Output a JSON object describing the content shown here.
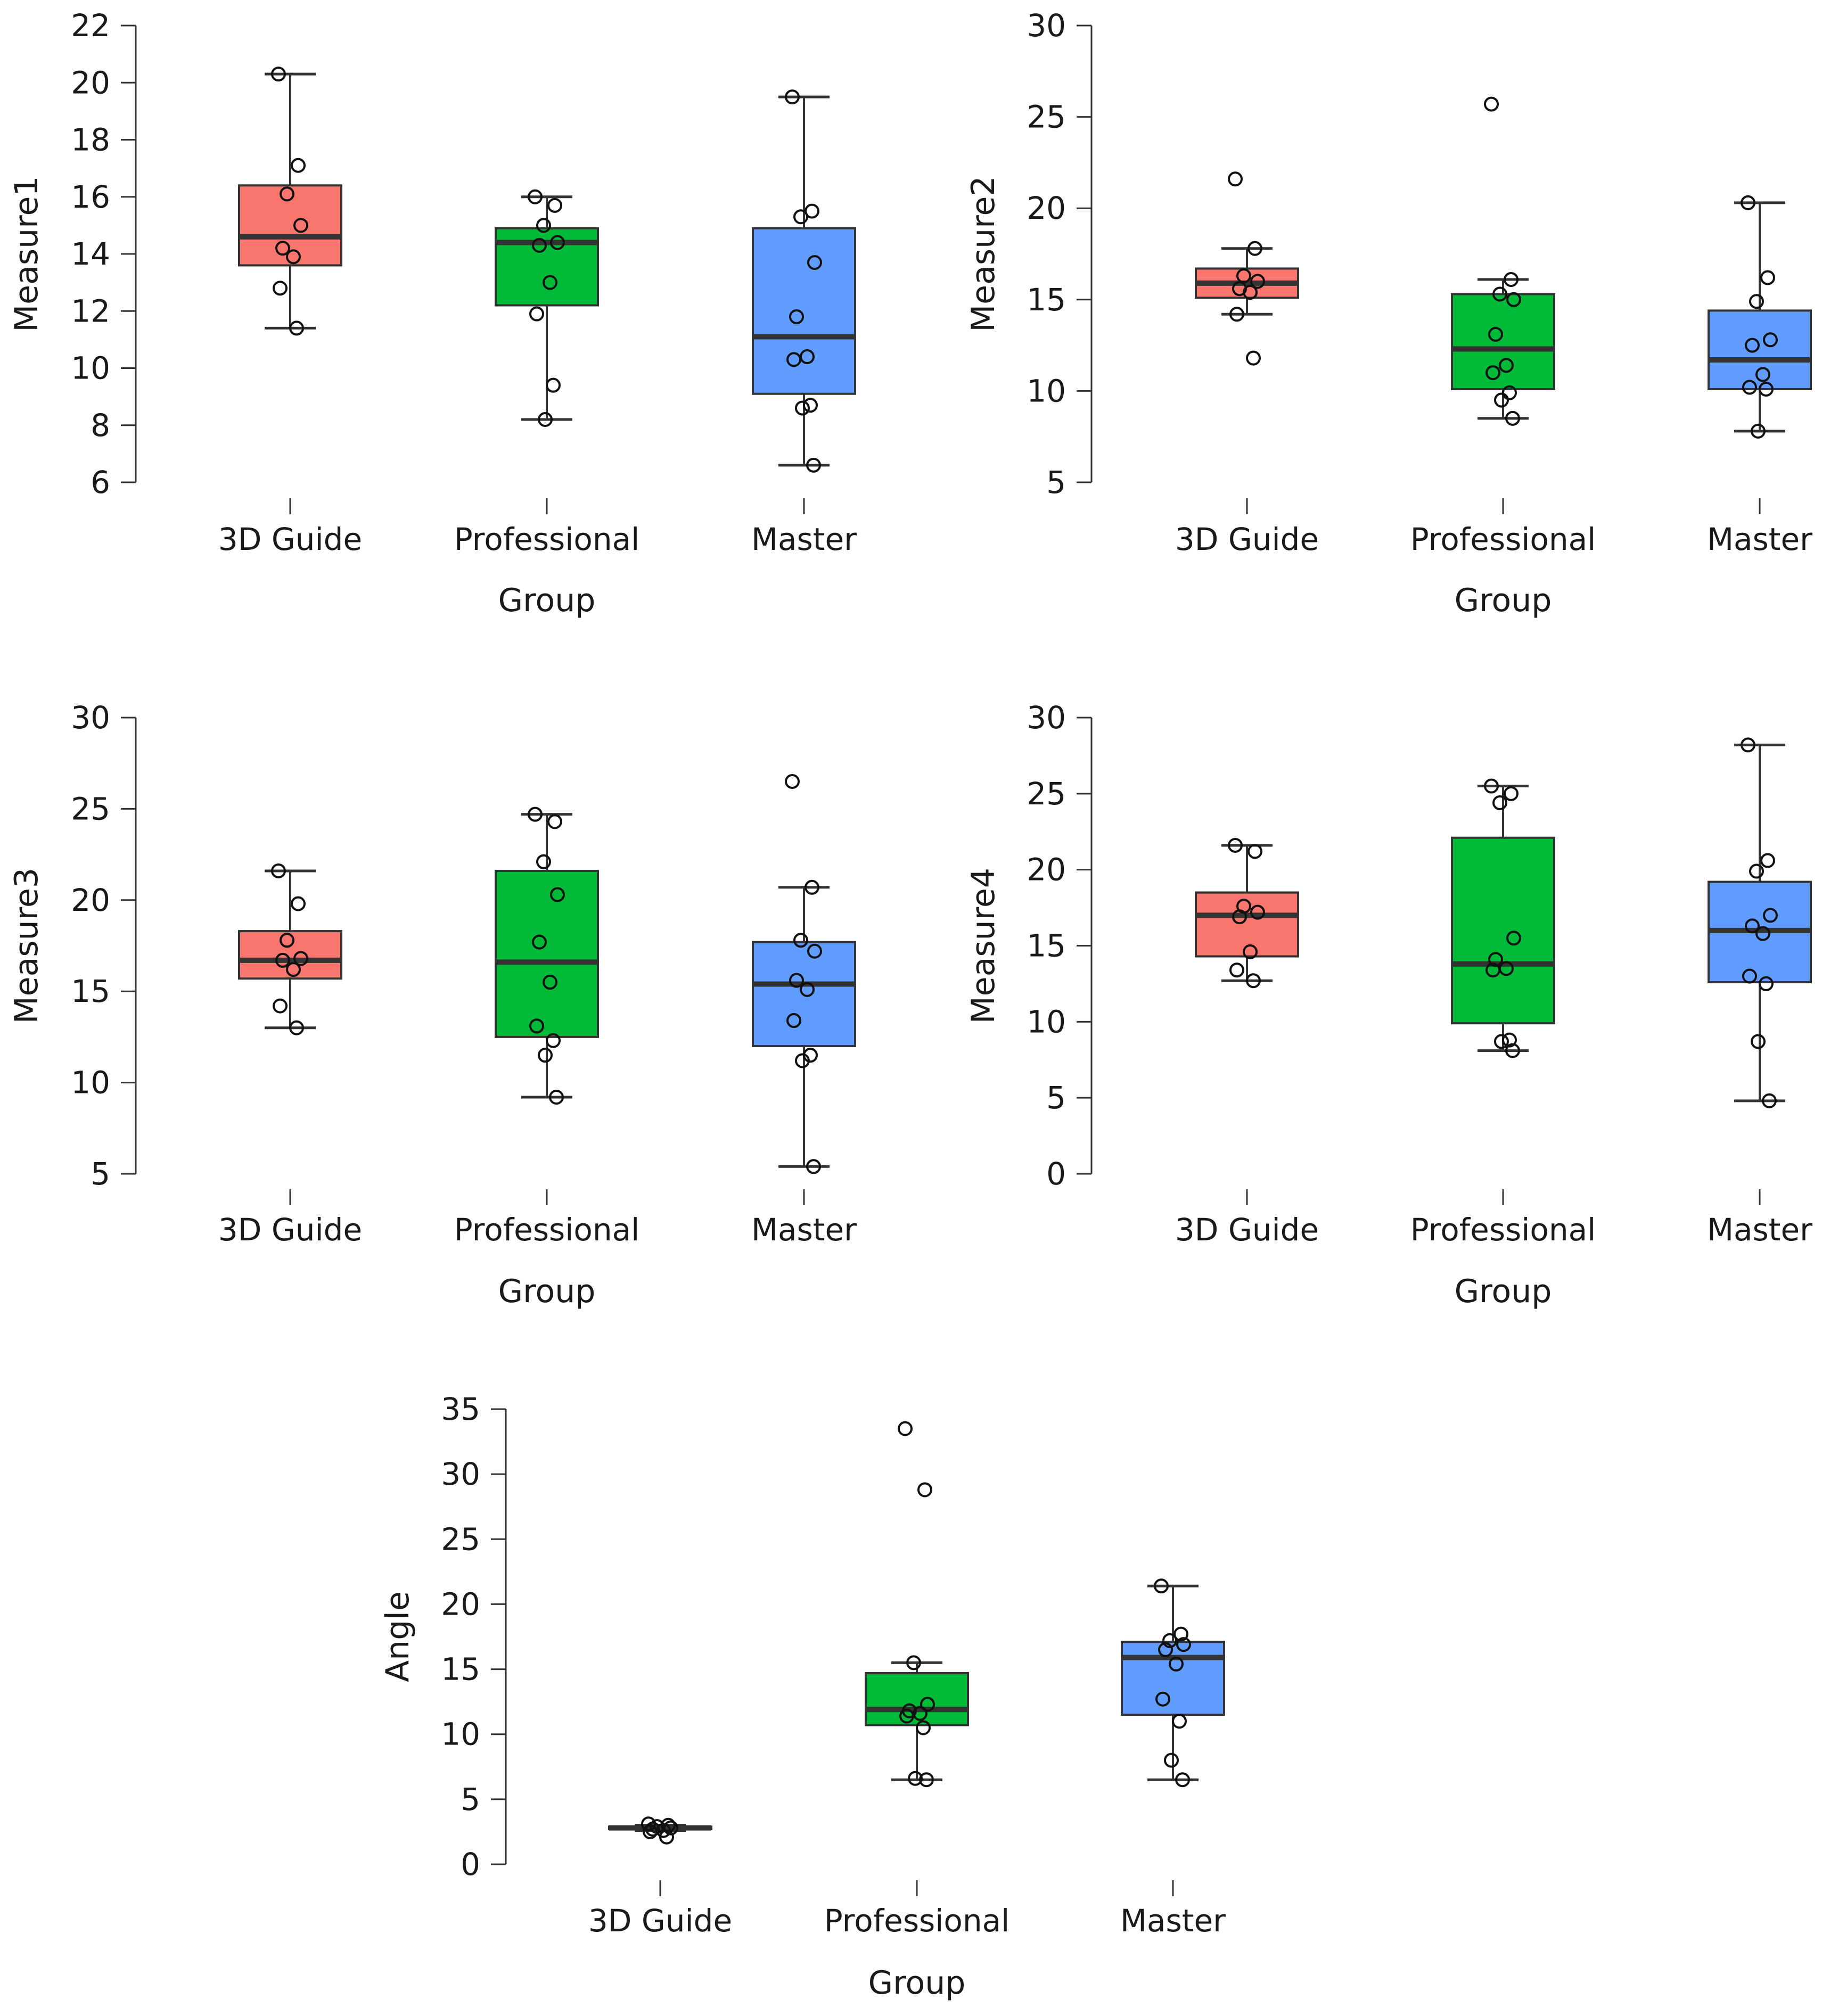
{
  "colors": {
    "3D Guide": "#F8766D",
    "Professional": "#00BA38",
    "Master": "#619CFF",
    "median": "#333333",
    "outline": "#333333"
  },
  "chart_data": [
    {
      "type": "box",
      "title": "",
      "xlabel": "Group",
      "ylabel": "Measure1",
      "categories": [
        "3D Guide",
        "Professional",
        "Master"
      ],
      "ylim": [
        6,
        22
      ],
      "yticks": [
        "6",
        "8",
        "10",
        "12",
        "14",
        "16",
        "18",
        "20",
        "22"
      ],
      "boxes": [
        {
          "group": "3D Guide",
          "min": 11.4,
          "q1": 13.6,
          "median": 14.6,
          "q3": 16.4,
          "max": 20.3,
          "points": [
            20.3,
            17.1,
            16.1,
            15.0,
            14.2,
            13.9,
            12.8,
            11.4
          ]
        },
        {
          "group": "Professional",
          "min": 8.2,
          "q1": 12.2,
          "median": 14.4,
          "q3": 14.9,
          "max": 16.0,
          "points": [
            16.0,
            15.7,
            15.0,
            14.4,
            14.3,
            13.0,
            11.9,
            9.4,
            8.2
          ]
        },
        {
          "group": "Master",
          "min": 6.6,
          "q1": 9.1,
          "median": 11.1,
          "q3": 14.9,
          "max": 19.5,
          "points": [
            19.5,
            15.5,
            15.3,
            13.7,
            11.8,
            10.4,
            10.3,
            8.7,
            8.6,
            6.6
          ]
        }
      ]
    },
    {
      "type": "box",
      "title": "",
      "xlabel": "Group",
      "ylabel": "Measure2",
      "categories": [
        "3D Guide",
        "Professional",
        "Master"
      ],
      "ylim": [
        5,
        30
      ],
      "yticks": [
        "5",
        "10",
        "15",
        "20",
        "25",
        "30"
      ],
      "boxes": [
        {
          "group": "3D Guide",
          "min": 14.2,
          "q1": 15.1,
          "median": 15.9,
          "q3": 16.7,
          "max": 17.8,
          "points": [
            21.6,
            17.8,
            16.3,
            16.0,
            15.6,
            15.4,
            14.2,
            11.8
          ]
        },
        {
          "group": "Professional",
          "min": 8.5,
          "q1": 10.1,
          "median": 12.3,
          "q3": 15.3,
          "max": 16.1,
          "points": [
            25.7,
            16.1,
            15.3,
            15.0,
            13.1,
            11.4,
            11.0,
            9.9,
            9.5,
            8.5
          ]
        },
        {
          "group": "Master",
          "min": 7.8,
          "q1": 10.1,
          "median": 11.7,
          "q3": 14.4,
          "max": 20.3,
          "points": [
            20.3,
            16.2,
            14.9,
            12.8,
            12.5,
            10.9,
            10.2,
            10.1,
            7.8
          ]
        }
      ]
    },
    {
      "type": "box",
      "title": "",
      "xlabel": "Group",
      "ylabel": "Measure3",
      "categories": [
        "3D Guide",
        "Professional",
        "Master"
      ],
      "ylim": [
        5,
        30
      ],
      "yticks": [
        "5",
        "10",
        "15",
        "20",
        "25",
        "30"
      ],
      "boxes": [
        {
          "group": "3D Guide",
          "min": 13.0,
          "q1": 15.7,
          "median": 16.7,
          "q3": 18.3,
          "max": 21.6,
          "points": [
            21.6,
            19.8,
            17.8,
            16.8,
            16.7,
            16.2,
            14.2,
            13.0
          ]
        },
        {
          "group": "Professional",
          "min": 9.2,
          "q1": 12.5,
          "median": 16.6,
          "q3": 21.6,
          "max": 24.7,
          "points": [
            24.7,
            24.3,
            22.1,
            20.3,
            17.7,
            15.5,
            13.1,
            12.3,
            11.5,
            9.2
          ]
        },
        {
          "group": "Master",
          "min": 5.4,
          "q1": 12.0,
          "median": 15.4,
          "q3": 17.7,
          "max": 20.7,
          "points": [
            26.5,
            20.7,
            17.8,
            17.2,
            15.6,
            15.1,
            13.4,
            11.5,
            11.2,
            5.4
          ]
        }
      ]
    },
    {
      "type": "box",
      "title": "",
      "xlabel": "Group",
      "ylabel": "Measure4",
      "categories": [
        "3D Guide",
        "Professional",
        "Master"
      ],
      "ylim": [
        0,
        30
      ],
      "yticks": [
        "0",
        "5",
        "10",
        "15",
        "20",
        "25",
        "30"
      ],
      "boxes": [
        {
          "group": "3D Guide",
          "min": 12.7,
          "q1": 14.3,
          "median": 17.0,
          "q3": 18.5,
          "max": 21.6,
          "points": [
            21.6,
            21.2,
            17.6,
            17.2,
            16.9,
            14.6,
            13.4,
            12.7
          ]
        },
        {
          "group": "Professional",
          "min": 8.1,
          "q1": 9.9,
          "median": 13.8,
          "q3": 22.1,
          "max": 25.5,
          "points": [
            25.5,
            25.0,
            24.4,
            15.5,
            14.1,
            13.5,
            13.4,
            8.8,
            8.7,
            8.1
          ]
        },
        {
          "group": "Master",
          "min": 4.8,
          "q1": 12.6,
          "median": 16.0,
          "q3": 19.2,
          "max": 28.2,
          "points": [
            28.2,
            20.6,
            19.9,
            17.0,
            16.3,
            15.8,
            13.0,
            12.5,
            8.7,
            4.8
          ]
        }
      ]
    },
    {
      "type": "box",
      "title": "",
      "xlabel": "Group",
      "ylabel": "Angle",
      "categories": [
        "3D Guide",
        "Professional",
        "Master"
      ],
      "ylim": [
        0,
        35
      ],
      "yticks": [
        "0",
        "5",
        "10",
        "15",
        "20",
        "25",
        "30",
        "35"
      ],
      "boxes": [
        {
          "group": "3D Guide",
          "min": 2.6,
          "q1": 2.7,
          "median": 2.8,
          "q3": 2.9,
          "max": 3.0,
          "points": [
            3.1,
            3.0,
            2.9,
            2.8,
            2.7,
            2.6,
            2.5,
            2.1
          ]
        },
        {
          "group": "Professional",
          "min": 6.5,
          "q1": 10.7,
          "median": 11.9,
          "q3": 14.7,
          "max": 15.5,
          "points": [
            33.5,
            28.8,
            15.5,
            12.3,
            11.8,
            11.6,
            11.4,
            10.5,
            6.6,
            6.5
          ]
        },
        {
          "group": "Master",
          "min": 6.5,
          "q1": 11.5,
          "median": 15.9,
          "q3": 17.1,
          "max": 21.4,
          "points": [
            21.4,
            17.7,
            17.2,
            16.9,
            16.5,
            15.4,
            12.7,
            11.0,
            8.0,
            6.5
          ]
        }
      ]
    }
  ]
}
